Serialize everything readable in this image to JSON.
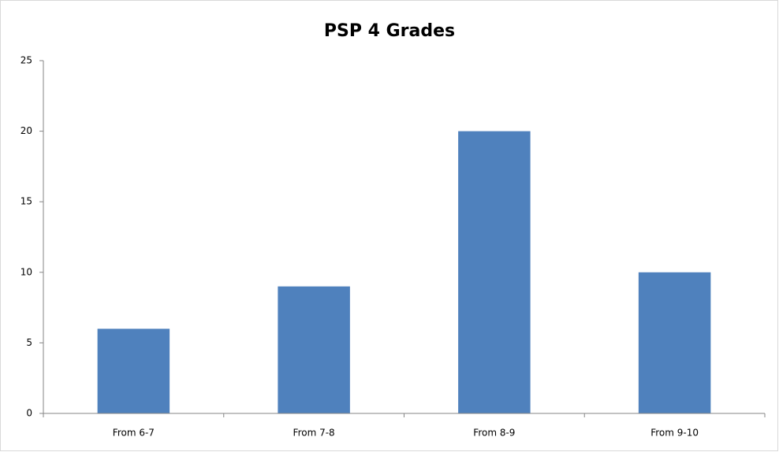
{
  "chart_data": {
    "type": "bar",
    "title": "PSP 4 Grades",
    "categories": [
      "From 6-7",
      "From 7-8",
      "From 8-9",
      "From 9-10"
    ],
    "values": [
      6,
      9,
      20,
      10
    ],
    "color": "#4f81bd",
    "ylim": [
      0,
      25
    ],
    "yticks": [
      0,
      5,
      10,
      15,
      20,
      25
    ],
    "grid": false
  }
}
